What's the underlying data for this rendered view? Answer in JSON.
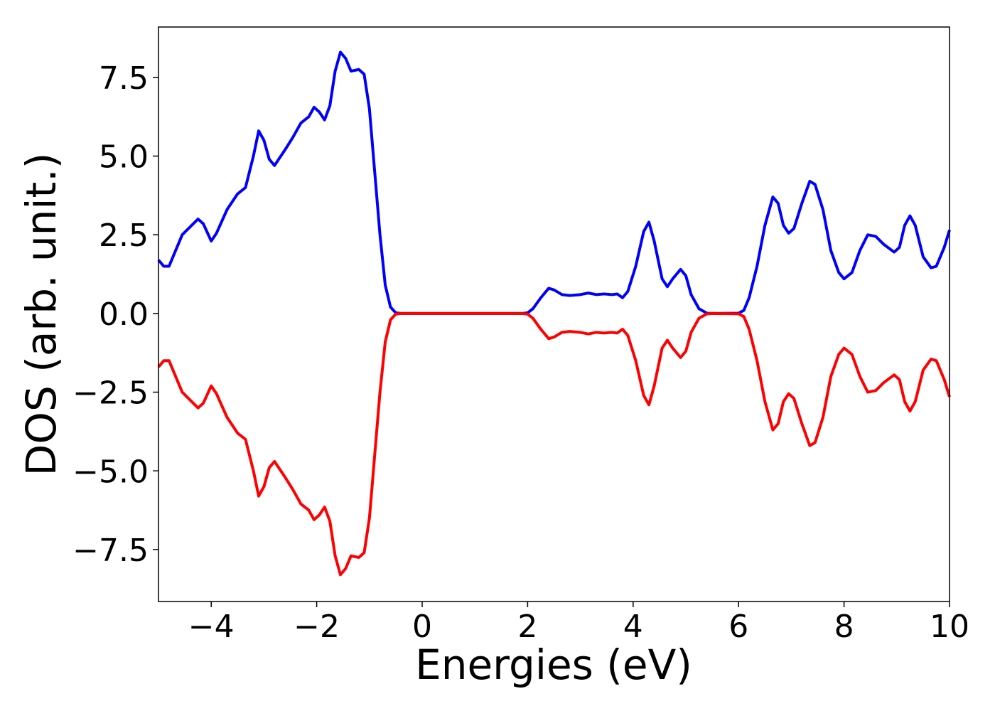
{
  "chart_data": {
    "type": "line",
    "xlabel": "Energies (eV)",
    "ylabel": "DOS (arb. unit.)",
    "x": [
      -5,
      -4.9,
      -4.8,
      -4.7,
      -4.55,
      -4.4,
      -4.25,
      -4.15,
      -4.0,
      -3.9,
      -3.7,
      -3.5,
      -3.35,
      -3.2,
      -3.1,
      -3.0,
      -2.9,
      -2.8,
      -2.6,
      -2.45,
      -2.3,
      -2.15,
      -2.05,
      -1.95,
      -1.85,
      -1.75,
      -1.65,
      -1.55,
      -1.45,
      -1.35,
      -1.2,
      -1.1,
      -1.0,
      -0.9,
      -0.8,
      -0.7,
      -0.6,
      -0.5,
      -0.4,
      0,
      1,
      1.9,
      2.0,
      2.1,
      2.25,
      2.4,
      2.5,
      2.65,
      2.8,
      3.0,
      3.15,
      3.3,
      3.45,
      3.6,
      3.7,
      3.8,
      3.9,
      4.05,
      4.2,
      4.3,
      4.4,
      4.55,
      4.65,
      4.75,
      4.9,
      5.0,
      5.1,
      5.25,
      5.4,
      5.5,
      6.0,
      6.1,
      6.2,
      6.35,
      6.5,
      6.65,
      6.75,
      6.85,
      6.95,
      7.05,
      7.2,
      7.35,
      7.45,
      7.6,
      7.75,
      7.9,
      8.0,
      8.15,
      8.3,
      8.45,
      8.6,
      8.75,
      8.95,
      9.05,
      9.15,
      9.25,
      9.35,
      9.5,
      9.65,
      9.75,
      9.9,
      10
    ],
    "series": [
      {
        "color": "#0000ff",
        "values": [
          1.7,
          1.5,
          1.5,
          1.9,
          2.5,
          2.75,
          3.0,
          2.85,
          2.3,
          2.55,
          3.3,
          3.8,
          4.0,
          5.0,
          5.8,
          5.5,
          4.9,
          4.7,
          5.2,
          5.6,
          6.05,
          6.25,
          6.55,
          6.4,
          6.15,
          6.6,
          7.7,
          8.3,
          8.1,
          7.7,
          7.75,
          7.6,
          6.5,
          4.5,
          2.5,
          0.9,
          0.2,
          0.02,
          0,
          0,
          0,
          0,
          0.02,
          0.15,
          0.5,
          0.8,
          0.75,
          0.6,
          0.57,
          0.6,
          0.65,
          0.6,
          0.62,
          0.6,
          0.62,
          0.5,
          0.7,
          1.5,
          2.6,
          2.9,
          2.3,
          1.1,
          0.85,
          1.1,
          1.4,
          1.2,
          0.6,
          0.15,
          0.01,
          0,
          0.01,
          0.1,
          0.5,
          1.5,
          2.8,
          3.7,
          3.5,
          2.8,
          2.55,
          2.7,
          3.5,
          4.2,
          4.1,
          3.3,
          2.0,
          1.3,
          1.1,
          1.3,
          2.0,
          2.5,
          2.45,
          2.2,
          1.95,
          2.1,
          2.8,
          3.1,
          2.8,
          1.8,
          1.45,
          1.5,
          2.1,
          2.65
        ]
      },
      {
        "color": "#ff0000",
        "values": [
          -1.7,
          -1.5,
          -1.5,
          -1.9,
          -2.5,
          -2.75,
          -3.0,
          -2.85,
          -2.3,
          -2.55,
          -3.3,
          -3.8,
          -4.0,
          -5.0,
          -5.8,
          -5.5,
          -4.9,
          -4.7,
          -5.2,
          -5.6,
          -6.05,
          -6.25,
          -6.55,
          -6.4,
          -6.15,
          -6.6,
          -7.7,
          -8.3,
          -8.1,
          -7.7,
          -7.75,
          -7.6,
          -6.5,
          -4.5,
          -2.5,
          -0.9,
          -0.2,
          -0.02,
          0,
          0,
          0,
          0,
          -0.02,
          -0.15,
          -0.5,
          -0.8,
          -0.75,
          -0.6,
          -0.57,
          -0.6,
          -0.65,
          -0.6,
          -0.62,
          -0.6,
          -0.62,
          -0.5,
          -0.7,
          -1.5,
          -2.6,
          -2.9,
          -2.3,
          -1.1,
          -0.85,
          -1.1,
          -1.4,
          -1.2,
          -0.6,
          -0.15,
          -0.01,
          0,
          -0.01,
          -0.1,
          -0.5,
          -1.5,
          -2.8,
          -3.7,
          -3.5,
          -2.8,
          -2.55,
          -2.7,
          -3.5,
          -4.2,
          -4.1,
          -3.3,
          -2.0,
          -1.3,
          -1.1,
          -1.3,
          -2.0,
          -2.5,
          -2.45,
          -2.2,
          -1.95,
          -2.1,
          -2.8,
          -3.1,
          -2.8,
          -1.8,
          -1.45,
          -1.5,
          -2.1,
          -2.65
        ]
      }
    ],
    "xlim": [
      -5,
      10
    ],
    "xticks": [
      {
        "value": -4,
        "label": "−4"
      },
      {
        "value": -2,
        "label": "−2"
      },
      0,
      2,
      4,
      6,
      8,
      10
    ],
    "ylim": [
      -9.15,
      9.1
    ],
    "yticks": [
      {
        "value": -7.5,
        "label": "−7.5"
      },
      {
        "value": -5,
        "label": "−5.0"
      },
      {
        "value": -2.5,
        "label": "−2.5"
      },
      {
        "value": 0,
        "label": "0.0"
      },
      {
        "value": 2.5,
        "label": "2.5"
      },
      {
        "value": 5,
        "label": "5.0"
      },
      {
        "value": 7.5,
        "label": "7.5"
      }
    ]
  }
}
